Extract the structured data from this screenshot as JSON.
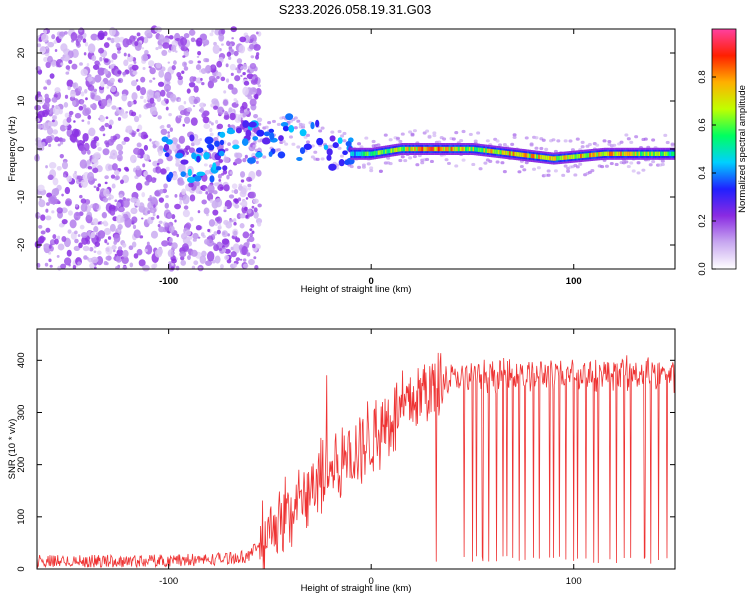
{
  "title": "S233.2026.058.19.31.G03",
  "chart_data": [
    {
      "type": "heatmap",
      "xlabel": "Height of straight line (km)",
      "ylabel": "Frequency (Hz)",
      "xlim": [
        -165,
        150
      ],
      "ylim": [
        -25,
        25
      ],
      "xticks": [
        -100,
        0,
        100
      ],
      "yticks": [
        -20,
        -10,
        0,
        10,
        20
      ],
      "colorbar": {
        "label": "Normalized spectral amplitude",
        "range": [
          0,
          1
        ],
        "ticks": [
          0.0,
          0.2,
          0.4,
          0.6,
          0.8
        ],
        "colormap": [
          "#ffffff",
          "#c8a8f0",
          "#8a2be2",
          "#2020ff",
          "#00d0ff",
          "#00ff60",
          "#c0ff00",
          "#ffb000",
          "#ff2000",
          "#ff40a0"
        ]
      },
      "noise_region_x_max": -60,
      "ridge": [
        {
          "x": -100,
          "y": -2,
          "v": 0.35
        },
        {
          "x": -80,
          "y": -2,
          "v": 0.3
        },
        {
          "x": -55,
          "y": 2,
          "v": 0.4
        },
        {
          "x": -40,
          "y": 3,
          "v": 0.35
        },
        {
          "x": -25,
          "y": 1,
          "v": 0.4
        },
        {
          "x": -10,
          "y": -1,
          "v": 0.45
        },
        {
          "x": 0,
          "y": -1,
          "v": 0.6
        },
        {
          "x": 15,
          "y": 0,
          "v": 0.7
        },
        {
          "x": 30,
          "y": 0,
          "v": 0.85
        },
        {
          "x": 50,
          "y": 0,
          "v": 0.7
        },
        {
          "x": 70,
          "y": -1,
          "v": 0.8
        },
        {
          "x": 90,
          "y": -2,
          "v": 0.75
        },
        {
          "x": 115,
          "y": -1,
          "v": 0.8
        },
        {
          "x": 150,
          "y": -1,
          "v": 0.6
        }
      ]
    },
    {
      "type": "line",
      "xlabel": "Height of straight line (km)",
      "ylabel": "SNR (10 * v/v)",
      "xlim": [
        -165,
        150
      ],
      "ylim": [
        0,
        460
      ],
      "xticks": [
        -100,
        0,
        100
      ],
      "yticks": [
        0,
        100,
        200,
        300,
        400
      ],
      "color": "#ee3333",
      "series": [
        {
          "name": "SNR",
          "x": [
            -165,
            -120,
            -80,
            -60,
            -50,
            -40,
            -30,
            -20,
            -10,
            0,
            10,
            20,
            30,
            40,
            50,
            60,
            80,
            100,
            120,
            150
          ],
          "y": [
            15,
            15,
            18,
            25,
            80,
            110,
            150,
            190,
            220,
            250,
            290,
            320,
            350,
            365,
            370,
            372,
            372,
            375,
            375,
            372
          ]
        }
      ],
      "dropouts_x": [
        32,
        46,
        50,
        52,
        55,
        58,
        62,
        65,
        67,
        70,
        73,
        76,
        80,
        83,
        88,
        90,
        93,
        96,
        100,
        102,
        106,
        110,
        112,
        118,
        121,
        125,
        128,
        135,
        138,
        142,
        146
      ]
    }
  ]
}
